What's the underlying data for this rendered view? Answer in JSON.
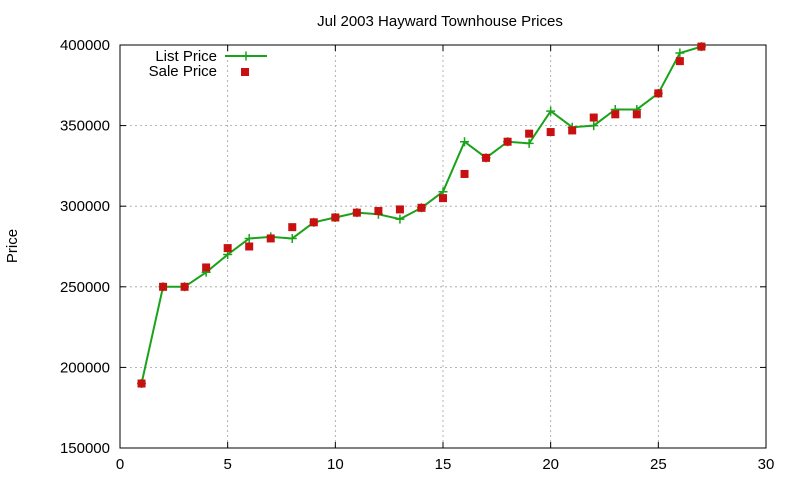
{
  "chart_data": {
    "type": "line",
    "title": "Jul 2003 Hayward Townhouse Prices",
    "xlabel": "",
    "ylabel": "Price",
    "xlim": [
      0,
      30
    ],
    "ylim": [
      150000,
      400000
    ],
    "xticks": [
      0,
      5,
      10,
      15,
      20,
      25,
      30
    ],
    "yticks": [
      150000,
      200000,
      250000,
      300000,
      350000,
      400000
    ],
    "grid": true,
    "legend_position": "top-left",
    "series": [
      {
        "name": "List Price",
        "style": "linespoints",
        "marker": "plus",
        "color": "#1aa31a",
        "x": [
          1,
          2,
          3,
          4,
          5,
          6,
          7,
          8,
          9,
          10,
          11,
          12,
          13,
          14,
          15,
          16,
          17,
          18,
          19,
          20,
          21,
          22,
          23,
          24,
          25,
          26,
          27
        ],
        "y": [
          190000,
          250000,
          250000,
          259000,
          270000,
          280000,
          281000,
          280000,
          290000,
          293000,
          296000,
          295000,
          292000,
          299000,
          309000,
          340000,
          330000,
          340000,
          339000,
          359000,
          349000,
          350000,
          360000,
          360000,
          370000,
          395000,
          399000
        ]
      },
      {
        "name": "Sale Price",
        "style": "points",
        "marker": "square",
        "color": "#c81010",
        "x": [
          1,
          2,
          3,
          4,
          5,
          6,
          7,
          8,
          9,
          10,
          11,
          12,
          13,
          14,
          15,
          16,
          17,
          18,
          19,
          20,
          21,
          22,
          23,
          24,
          25,
          26,
          27
        ],
        "y": [
          190000,
          250000,
          250000,
          262000,
          274000,
          275000,
          280000,
          287000,
          290000,
          293000,
          296000,
          297000,
          298000,
          299000,
          305000,
          320000,
          330000,
          340000,
          345000,
          346000,
          347000,
          355000,
          357000,
          357000,
          370000,
          390000,
          399000
        ]
      }
    ]
  }
}
